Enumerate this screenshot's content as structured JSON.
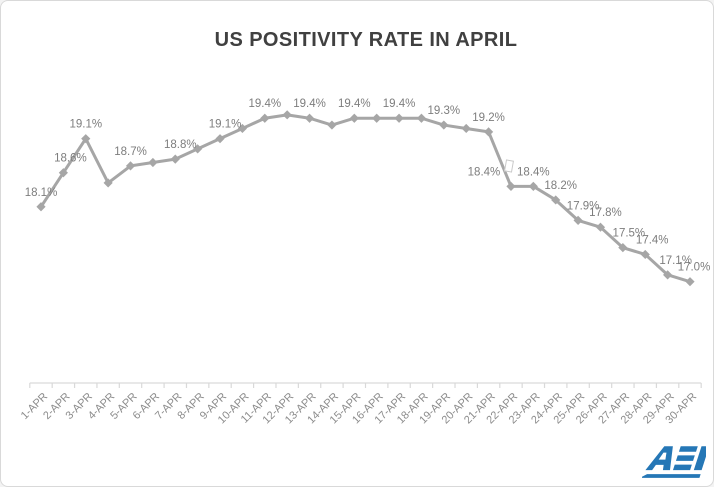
{
  "title": "US POSITIVITY RATE IN APRIL",
  "logo": {
    "text": "AEI",
    "color": "#2577b6"
  },
  "colors": {
    "series": "#a6a6a6",
    "data_label": "#7d7d7d",
    "axis_line": "#d9d9d9",
    "axis_label": "#8c8c8c",
    "title": "#404040"
  },
  "chart_data": {
    "type": "line",
    "title": "US POSITIVITY RATE IN APRIL",
    "xlabel": "",
    "ylabel": "",
    "grid": false,
    "legend": false,
    "marker": "diamond",
    "ylim": [
      16.8,
      19.8
    ],
    "categories": [
      "1-APR",
      "2-APR",
      "3-APR",
      "4-APR",
      "5-APR",
      "6-APR",
      "7-APR",
      "8-APR",
      "9-APR",
      "10-APR",
      "11-APR",
      "12-APR",
      "13-APR",
      "14-APR",
      "15-APR",
      "16-APR",
      "17-APR",
      "18-APR",
      "19-APR",
      "20-APR",
      "21-APR",
      "22-APR",
      "23-APR",
      "24-APR",
      "25-APR",
      "26-APR",
      "27-APR",
      "28-APR",
      "29-APR",
      "30-APR"
    ],
    "values": [
      18.1,
      18.6,
      19.1,
      18.45,
      18.7,
      18.75,
      18.8,
      18.95,
      19.1,
      19.25,
      19.4,
      19.45,
      19.4,
      19.3,
      19.4,
      19.4,
      19.4,
      19.4,
      19.3,
      19.25,
      19.2,
      18.4,
      18.4,
      18.2,
      17.9,
      17.8,
      17.5,
      17.4,
      17.1,
      17.0
    ],
    "point_labels": [
      "18.1%",
      "18.6%",
      "19.1%",
      null,
      "18.7%",
      null,
      "18.8%",
      null,
      "19.1%",
      null,
      "19.4%",
      null,
      "19.4%",
      null,
      "19.4%",
      null,
      "19.4%",
      null,
      "19.3%",
      null,
      "19.2%",
      "18.4%",
      "18.4%",
      "18.2%",
      "17.9%",
      "17.8%",
      "17.5%",
      "17.4%",
      "17.1%",
      "17.0%"
    ],
    "label_dx": {
      "1": 7,
      "6": 5,
      "8": 5,
      "21": -27,
      "23": 5,
      "24": 5,
      "25": 5,
      "26": 6,
      "27": 7,
      "28": 8,
      "29": 4
    }
  }
}
